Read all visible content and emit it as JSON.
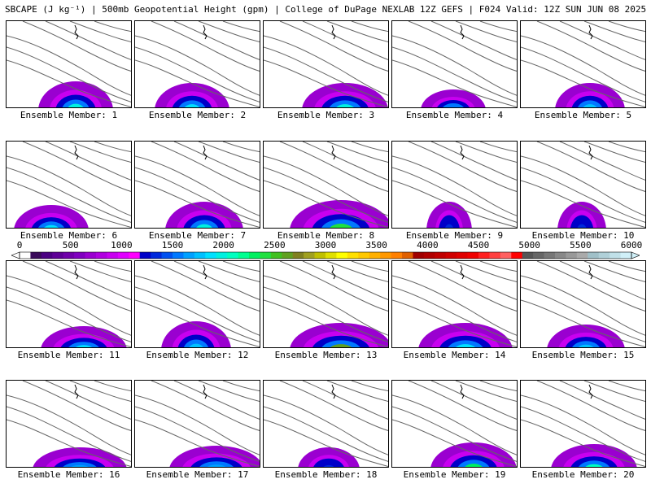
{
  "title": "SBCAPE (J kg⁻¹) | 500mb Geopotential Height (gpm) | College of DuPage NEXLAB 12Z GEFS | F024 Valid: 12Z SUN JUN 08 2025",
  "member_prefix": "Ensemble Member:",
  "members": [
    {
      "label": "Ensemble Member: 1",
      "max_cape": 2000
    },
    {
      "label": "Ensemble Member: 2",
      "max_cape": 1900
    },
    {
      "label": "Ensemble Member: 3",
      "max_cape": 2000
    },
    {
      "label": "Ensemble Member: 4",
      "max_cape": 1600
    },
    {
      "label": "Ensemble Member: 5",
      "max_cape": 1800
    },
    {
      "label": "Ensemble Member: 6",
      "max_cape": 1900
    },
    {
      "label": "Ensemble Member: 7",
      "max_cape": 2000
    },
    {
      "label": "Ensemble Member: 8",
      "max_cape": 2400
    },
    {
      "label": "Ensemble Member: 9",
      "max_cape": 1300
    },
    {
      "label": "Ensemble Member: 10",
      "max_cape": 1300
    },
    {
      "label": "Ensemble Member: 11",
      "max_cape": 1900
    },
    {
      "label": "Ensemble Member: 12",
      "max_cape": 1800
    },
    {
      "label": "Ensemble Member: 13",
      "max_cape": 2600
    },
    {
      "label": "Ensemble Member: 14",
      "max_cape": 1900
    },
    {
      "label": "Ensemble Member: 15",
      "max_cape": 1800
    },
    {
      "label": "Ensemble Member: 16",
      "max_cape": 1700
    },
    {
      "label": "Ensemble Member: 17",
      "max_cape": 1700
    },
    {
      "label": "Ensemble Member: 18",
      "max_cape": 1300
    },
    {
      "label": "Ensemble Member: 19",
      "max_cape": 2300
    },
    {
      "label": "Ensemble Member: 20",
      "max_cape": 2100
    }
  ],
  "colorbar": {
    "min": 0,
    "max": 6000,
    "tick_labels": [
      "0",
      "500",
      "1000",
      "1500",
      "2000",
      "2500",
      "3000",
      "3500",
      "4000",
      "4500",
      "5000",
      "5500",
      "6000"
    ],
    "colors": [
      "#ffffff",
      "#3a0a5a",
      "#4b0082",
      "#5e0096",
      "#7000aa",
      "#8000c0",
      "#9a00d0",
      "#b000e0",
      "#c800f0",
      "#e000ff",
      "#ff00ff",
      "#0000c8",
      "#0028dc",
      "#0050f0",
      "#0078ff",
      "#00a0ff",
      "#00c0ff",
      "#00e0ff",
      "#00f0e0",
      "#00ffc0",
      "#00ff90",
      "#00f060",
      "#20e040",
      "#40c020",
      "#60a020",
      "#808020",
      "#a0a020",
      "#c0c000",
      "#e0e000",
      "#ffff00",
      "#ffe000",
      "#ffc800",
      "#ffb000",
      "#ff9800",
      "#ff8000",
      "#e06000",
      "#a00000",
      "#b00000",
      "#c00000",
      "#d00000",
      "#e00000",
      "#f00000",
      "#ff2020",
      "#ff4040",
      "#ff6060",
      "#ff0000",
      "#555555",
      "#666666",
      "#777777",
      "#888888",
      "#999999",
      "#aaaaaa",
      "#a0c0c8",
      "#b0d0d8",
      "#c0e0e8",
      "#d0f0f8"
    ]
  }
}
